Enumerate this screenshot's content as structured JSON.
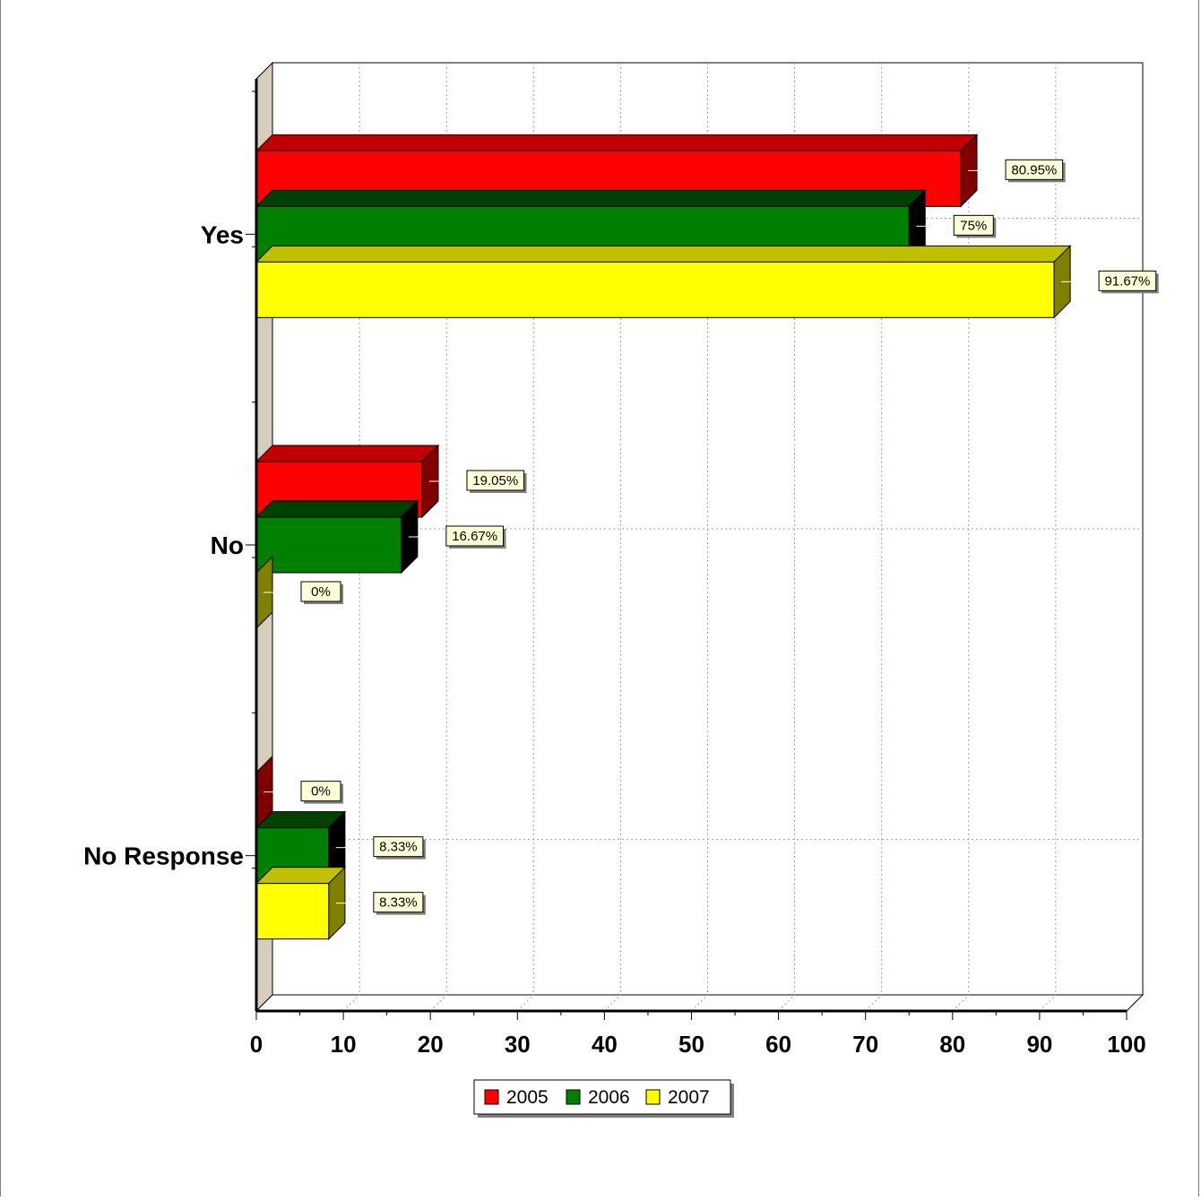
{
  "chart_data": {
    "type": "bar",
    "orientation": "horizontal",
    "three_d": true,
    "categories": [
      "Yes",
      "No",
      "No Response"
    ],
    "series": [
      {
        "name": "2005",
        "values": [
          80.95,
          19.05,
          0
        ],
        "labels": [
          "80.95%",
          "19.05%",
          "0%"
        ],
        "color": "#ff0000",
        "side_color": "#800000",
        "top_color": "#c00000"
      },
      {
        "name": "2006",
        "values": [
          75,
          16.67,
          8.33
        ],
        "labels": [
          "75%",
          "16.67%",
          "8.33%"
        ],
        "color": "#008000",
        "side_color": "#000000",
        "top_color": "#004000"
      },
      {
        "name": "2007",
        "values": [
          91.67,
          0,
          8.33
        ],
        "labels": [
          "91.67%",
          "0%",
          "8.33%"
        ],
        "color": "#ffff00",
        "side_color": "#808000",
        "top_color": "#c0c000"
      }
    ],
    "x_ticks": [
      "0",
      "10",
      "20",
      "30",
      "40",
      "50",
      "60",
      "70",
      "80",
      "90",
      "100"
    ],
    "xlim": [
      0,
      100
    ],
    "grid": true,
    "legend_position": "bottom",
    "title": "",
    "xlabel": "",
    "ylabel": ""
  },
  "colors": {
    "wall": "#d8ccbc",
    "grid": "#a0a0a0",
    "label_bg": "#ffffd8"
  }
}
